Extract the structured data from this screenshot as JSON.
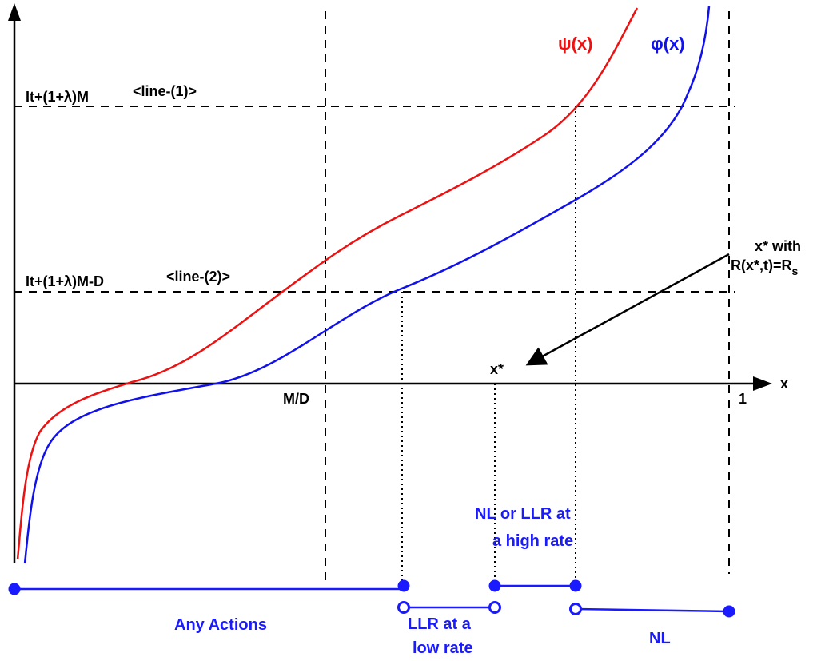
{
  "curves": {
    "psi": {
      "label": "ψ(x)",
      "color": "#ee1111"
    },
    "phi": {
      "label": "φ(x)",
      "color": "#1111ee"
    }
  },
  "axes": {
    "x_label": "x",
    "ticks": {
      "md": "M/D",
      "one": "1",
      "xstar": "x*"
    }
  },
  "levels": {
    "line1_expr": "It+(1+λ)M",
    "line1_tag": "<line-(1)>",
    "line2_expr": "It+(1+λ)M-D",
    "line2_tag": "<line-(2)>"
  },
  "annotation": {
    "line1": "x* with",
    "line2_main": "R(x*,t)=R",
    "line2_sub": "s"
  },
  "regions": {
    "any_actions": "Any Actions",
    "llr_low_1": "LLR at a",
    "llr_low_2": "low rate",
    "nl_or_llr_1": "NL or LLR at",
    "nl_or_llr_2": "a high rate",
    "nl": "NL"
  },
  "segment_color": "#1a1aff"
}
